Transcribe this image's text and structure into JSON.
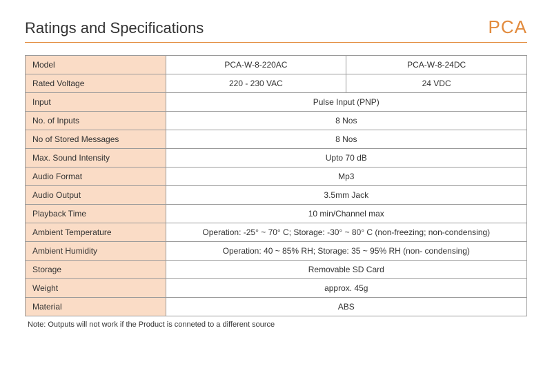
{
  "header": {
    "title": "Ratings and Specifications",
    "brand": "PCA"
  },
  "table": {
    "label_bg": "#fadcc6",
    "border_color": "#9a9a9a",
    "rows": [
      {
        "label": "Model",
        "cells": [
          "PCA-W-8-220AC",
          "PCA-W-8-24DC"
        ]
      },
      {
        "label": "Rated Voltage",
        "cells": [
          "220 - 230 VAC",
          "24 VDC"
        ]
      },
      {
        "label": "Input",
        "cells": [
          "Pulse Input (PNP)"
        ]
      },
      {
        "label": "No. of Inputs",
        "cells": [
          "8 Nos"
        ]
      },
      {
        "label": "No of Stored Messages",
        "cells": [
          "8 Nos"
        ]
      },
      {
        "label": "Max. Sound Intensity",
        "cells": [
          "Upto 70 dB"
        ]
      },
      {
        "label": "Audio Format",
        "cells": [
          "Mp3"
        ]
      },
      {
        "label": "Audio Output",
        "cells": [
          "3.5mm Jack"
        ]
      },
      {
        "label": "Playback Time",
        "cells": [
          "10 min/Channel max"
        ]
      },
      {
        "label": "Ambient Temperature",
        "cells": [
          "Operation: -25° ~ 70° C; Storage: -30° ~ 80° C (non-freezing; non-condensing)"
        ]
      },
      {
        "label": "Ambient Humidity",
        "cells": [
          "Operation: 40 ~ 85% RH; Storage: 35 ~ 95% RH (non- condensing)"
        ]
      },
      {
        "label": "Storage",
        "cells": [
          "Removable SD Card"
        ]
      },
      {
        "label": "Weight",
        "cells": [
          "approx. 45g"
        ]
      },
      {
        "label": "Material",
        "cells": [
          "ABS"
        ]
      }
    ]
  },
  "note": "Note: Outputs will not work if the Product is conneted to a different source"
}
